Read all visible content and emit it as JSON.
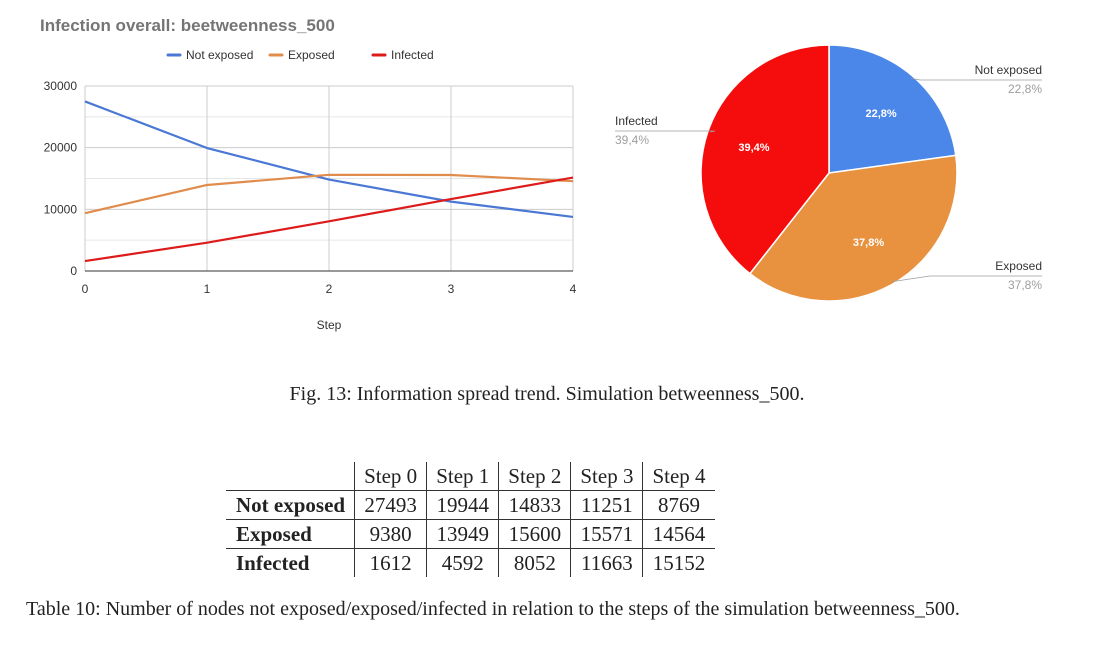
{
  "chart_data": [
    {
      "type": "line",
      "title": "Infection overall: beetweenness_500",
      "xlabel": "Step",
      "ylabel": "",
      "x": [
        0,
        1,
        2,
        3,
        4
      ],
      "ylim": [
        0,
        30000
      ],
      "yticks": [
        0,
        10000,
        20000,
        30000
      ],
      "grid": true,
      "legend_position": "top",
      "series": [
        {
          "name": "Not exposed",
          "color": "#4a78d4",
          "values": [
            27493,
            19944,
            14833,
            11251,
            8769
          ]
        },
        {
          "name": "Exposed",
          "color": "#e08c4c",
          "values": [
            9380,
            13949,
            15600,
            15571,
            14564
          ]
        },
        {
          "name": "Infected",
          "color": "#dd1b1b",
          "values": [
            1612,
            4592,
            8052,
            11663,
            15152
          ]
        }
      ]
    },
    {
      "type": "pie",
      "slices": [
        {
          "name": "Not exposed",
          "value": 22.8,
          "label": "22,8%",
          "color": "#4a87e8"
        },
        {
          "name": "Exposed",
          "value": 37.8,
          "label": "37,8%",
          "color": "#e8913e"
        },
        {
          "name": "Infected",
          "value": 39.4,
          "label": "39,4%",
          "color": "#f50d0d"
        }
      ]
    }
  ],
  "figure_caption": "Fig. 13: Information spread trend. Simulation betweenness_500.",
  "table": {
    "headers": [
      "",
      "Step 0",
      "Step 1",
      "Step 2",
      "Step 3",
      "Step 4"
    ],
    "rows": [
      {
        "label": "Not exposed",
        "cells": [
          "27493",
          "19944",
          "14833",
          "11251",
          "8769"
        ]
      },
      {
        "label": "Exposed",
        "cells": [
          "9380",
          "13949",
          "15600",
          "15571",
          "14564"
        ]
      },
      {
        "label": "Infected",
        "cells": [
          "1612",
          "4592",
          "8052",
          "11663",
          "15152"
        ]
      }
    ]
  },
  "table_caption": "Table 10: Number of nodes not exposed/exposed/infected in relation to the steps of the simulation betweenness_500."
}
